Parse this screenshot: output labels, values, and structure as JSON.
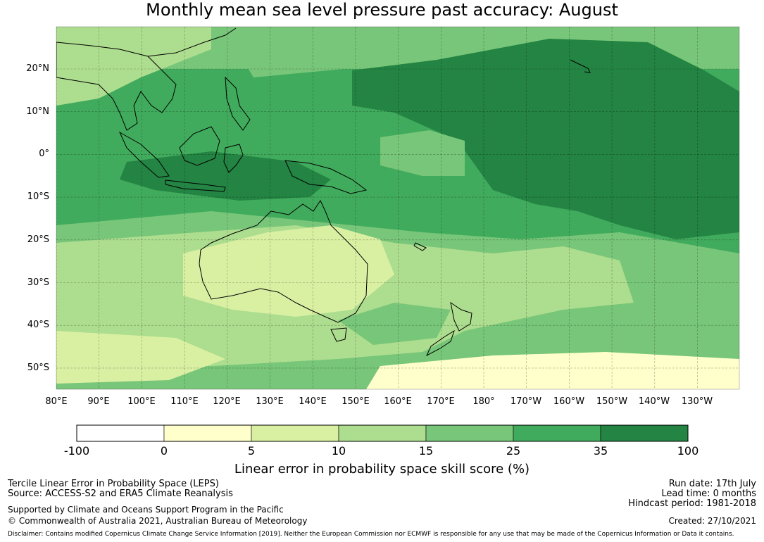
{
  "title": "Monthly mean sea level pressure past accuracy: August",
  "map": {
    "latitude_labels": [
      "20°N",
      "10°N",
      "0°",
      "10°S",
      "20°S",
      "30°S",
      "40°S",
      "50°S"
    ],
    "longitude_labels": [
      "80°E",
      "90°E",
      "100°E",
      "110°E",
      "120°E",
      "130°E",
      "140°E",
      "150°E",
      "160°E",
      "170°E",
      "180°",
      "170°W",
      "160°W",
      "150°W",
      "140°W",
      "130°W"
    ]
  },
  "colorbar": {
    "ticks": [
      "-100",
      "0",
      "5",
      "10",
      "15",
      "25",
      "35",
      "100"
    ],
    "colors": [
      "#ffffff",
      "#ffffcc",
      "#d9f0a3",
      "#addd8e",
      "#78c679",
      "#41ab5d",
      "#238443"
    ],
    "label": "Linear error in probability space skill score (%)"
  },
  "footer": {
    "left_line1": "Tercile Linear Error in Probability Space (LEPS)",
    "left_line2": "Source: ACCESS-S2 and ERA5 Climate Reanalysis",
    "left_line3": "Supported by Climate and Oceans Support Program in the Pacific",
    "left_line4": "© Commonwealth of Australia 2021, Australian Bureau of Meteorology",
    "right_line1": "Run date: 17th July",
    "right_line2": "Lead time: 0 months",
    "right_line3": "Hindcast period: 1981-2018",
    "right_line4": "Created: 27/10/2021",
    "disclaimer": "Disclaimer: Contains modified Copernicus Climate Change Service Information [2019]. Neither the European Commission nor ECMWF is responsible for any use that may be made of the Copernicus Information or Data it contains."
  }
}
